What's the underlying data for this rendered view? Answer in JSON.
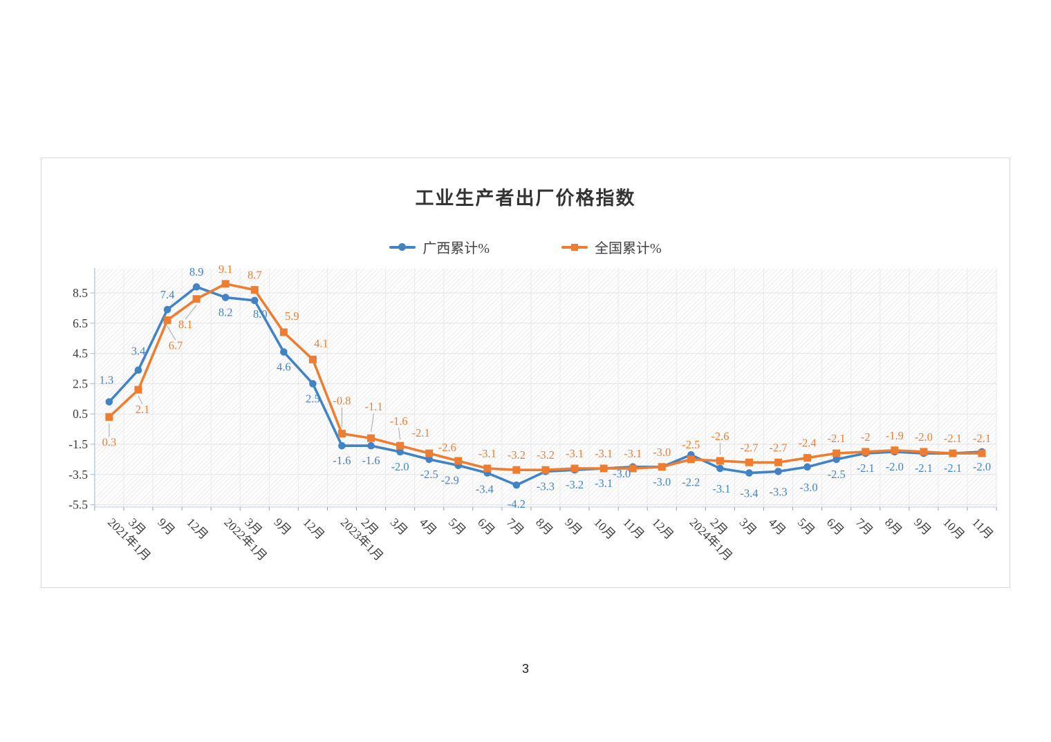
{
  "page": {
    "number": "3"
  },
  "chart": {
    "title": "工业生产者出厂价格指数",
    "legend": [
      {
        "label": "广西累计%",
        "color": "#4183c4",
        "marker": "circle"
      },
      {
        "label": "全国累计%",
        "color": "#ed7d31",
        "marker": "square"
      }
    ]
  },
  "chart_data": {
    "type": "line",
    "title": "工业生产者出厂价格指数",
    "xlabel": "",
    "ylabel": "",
    "categories": [
      "2021年1月",
      "3月",
      "9月",
      "12月",
      "2022年1月",
      "3月",
      "9月",
      "12月",
      "2023年1月",
      "2月",
      "3月",
      "4月",
      "5月",
      "6月",
      "7月",
      "8月",
      "9月",
      "10月",
      "11月",
      "12月",
      "2024年1月",
      "2月",
      "3月",
      "4月",
      "5月",
      "6月",
      "7月",
      "8月",
      "9月",
      "10月",
      "11月"
    ],
    "series": [
      {
        "name": "广西累计%",
        "color": "#4183c4",
        "marker": "circle",
        "values": [
          1.3,
          3.4,
          7.4,
          8.9,
          8.2,
          8.0,
          4.6,
          2.5,
          -1.6,
          -1.6,
          -2.0,
          -2.5,
          -2.9,
          -3.4,
          -4.2,
          -3.3,
          -3.2,
          -3.1,
          -3.0,
          -3.0,
          -2.2,
          -3.1,
          -3.4,
          -3.3,
          -3.0,
          -2.5,
          -2.1,
          -2.0,
          -2.1,
          -2.1,
          -2.0
        ],
        "labels": [
          "1.3",
          "3.4",
          "7.4",
          "8.9",
          "8.2",
          "8.0",
          "4.6",
          "2.5",
          "-1.6",
          "-1.6",
          "-2.0",
          "-2.5",
          "-2.9",
          "-3.4",
          "-4.2",
          "-3.3",
          "-3.2",
          "-3.1",
          "-3.0",
          "-3.0",
          "-2.2",
          "-3.1",
          "-3.4",
          "-3.3",
          "-3.0",
          "-2.5",
          "-2.1",
          "-2.0",
          "-2.1",
          "-2.1",
          "-2.0"
        ]
      },
      {
        "name": "全国累计%",
        "color": "#ed7d31",
        "marker": "square",
        "values": [
          0.3,
          2.1,
          6.7,
          8.1,
          9.1,
          8.7,
          5.9,
          4.1,
          -0.8,
          -1.1,
          -1.6,
          -2.1,
          -2.6,
          -3.1,
          -3.2,
          -3.2,
          -3.1,
          -3.1,
          -3.1,
          -3.0,
          -2.5,
          -2.6,
          -2.7,
          -2.7,
          -2.4,
          -2.1,
          -2.0,
          -1.9,
          -2.0,
          -2.1,
          -2.1
        ],
        "labels": [
          "0.3",
          "2.1",
          "6.7",
          "8.1",
          "9.1",
          "8.7",
          "5.9",
          "4.1",
          "-0.8",
          "-1.1",
          "-1.6",
          "-2.1",
          "-2.6",
          "-3.1",
          "-3.2",
          "-3.2",
          "-3.1",
          "-3.1",
          "-3.1",
          "-3.0",
          "-2.5",
          "-2.6",
          "-2.7",
          "-2.7",
          "-2.4",
          "-2.1",
          "-2",
          "-1.9",
          "-2.0",
          "-2.1",
          "-2.1"
        ]
      }
    ],
    "yticks": [
      8.5,
      6.5,
      4.5,
      2.5,
      0.5,
      -1.5,
      -3.5,
      -5.5
    ],
    "ylim": [
      -5.65,
      10.14
    ],
    "grid": true,
    "plot_background": "diagonal-hatch",
    "legend_position": "top"
  }
}
